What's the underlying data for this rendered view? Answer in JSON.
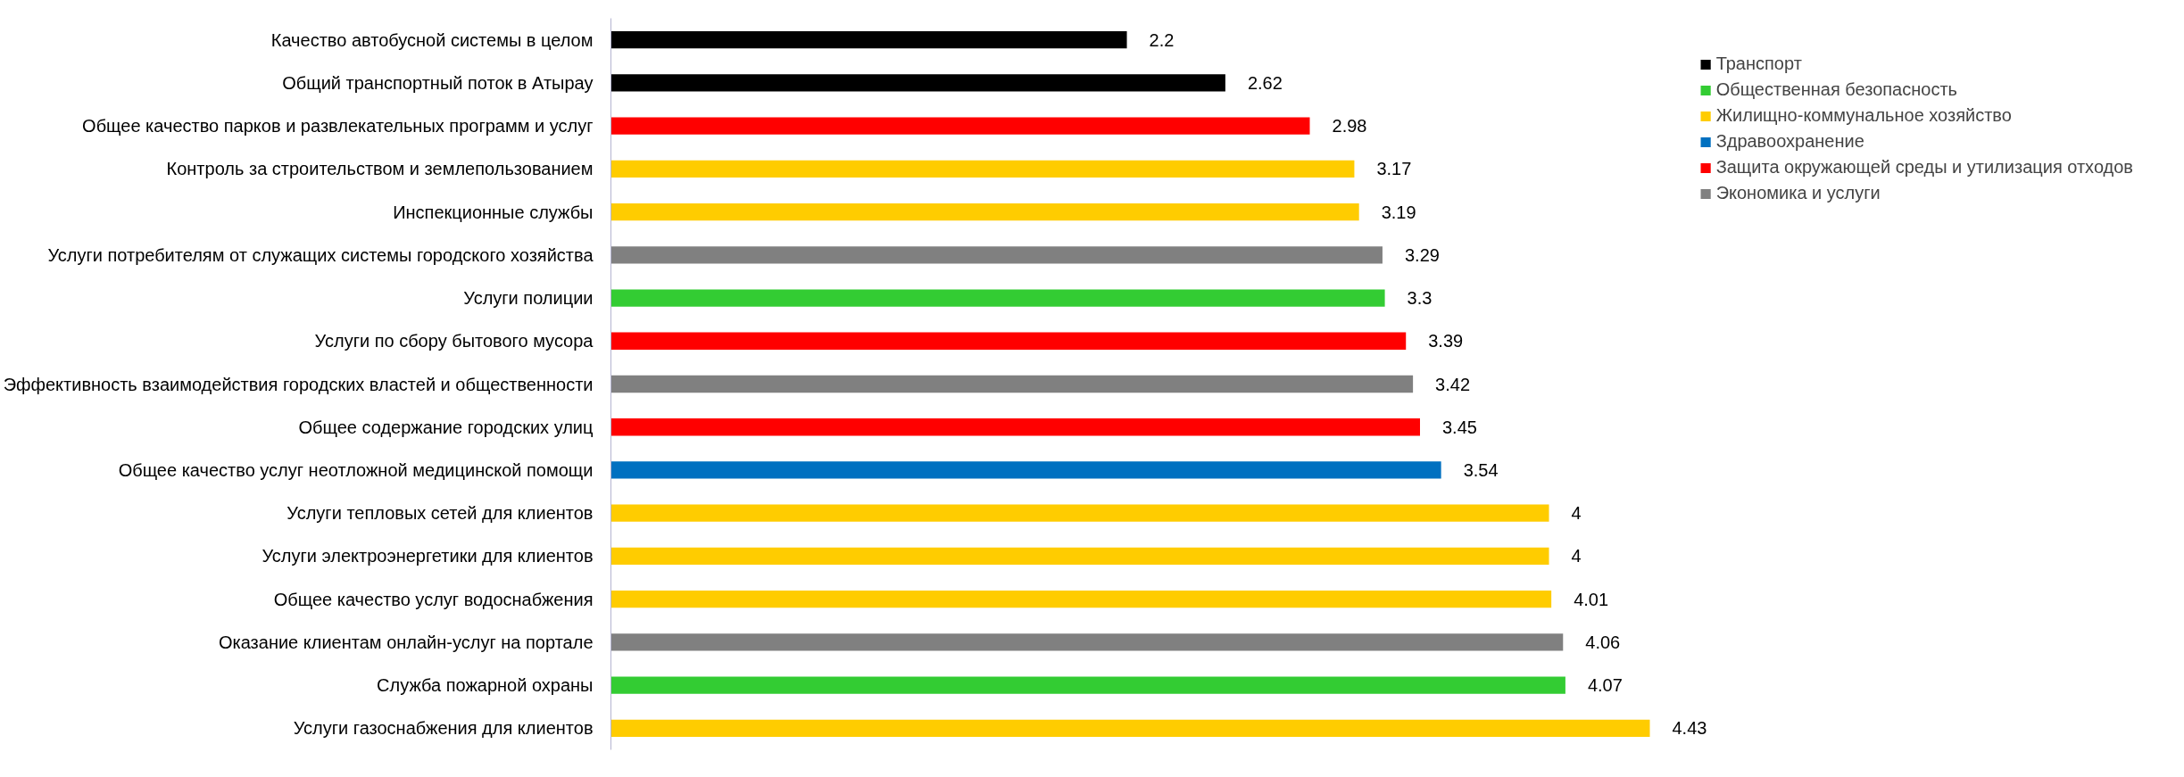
{
  "chart_data": {
    "type": "bar",
    "orientation": "horizontal",
    "data_labels": true,
    "legend": "top right",
    "grid": false,
    "tick_labels": "y",
    "categories": [
      "Качество автобусной системы в целом",
      "Общий транспортный поток в Атырау",
      "Общее качество парков и развлекательных программ и услуг",
      "Контроль за строительством и землепользованием",
      "Инспекционные службы",
      "Услуги потребителям от служащих системы городского хозяйства",
      "Услуги полиции",
      "Услуги по сбору бытового мусора",
      "Эффективность взаимодействия городских властей и общественности",
      "Общее содержание городских улиц",
      "Общее качество услуг неотложной медицинской помощи",
      "Услуги тепловых сетей для клиентов",
      "Услуги электроэнергетики для клиентов",
      "Общее качество услуг водоснабжения",
      "Оказание клиентам онлайн-услуг на портале",
      "Служба пожарной охраны",
      "Услуги газоснабжения для клиентов"
    ],
    "series": [
      {
        "name": "Транспорт",
        "color": "#000000",
        "values": [
          2.2,
          2.62,
          null,
          null,
          null,
          null,
          null,
          null,
          null,
          null,
          null,
          null,
          null,
          null,
          null,
          null,
          null
        ]
      },
      {
        "name": "Общественная безопасность",
        "color": "#33cc33",
        "values": [
          null,
          null,
          null,
          null,
          null,
          null,
          3.3,
          null,
          null,
          null,
          null,
          null,
          null,
          null,
          null,
          4.07,
          null
        ]
      },
      {
        "name": "Жилищно-коммунальное хозяйство",
        "color": "#ffcc00",
        "values": [
          null,
          null,
          null,
          3.17,
          3.19,
          null,
          null,
          null,
          null,
          null,
          null,
          4,
          4,
          4.01,
          null,
          null,
          4.43
        ]
      },
      {
        "name": "Здравоохранение",
        "color": "#0070c0",
        "values": [
          null,
          null,
          null,
          null,
          null,
          null,
          null,
          null,
          null,
          null,
          3.54,
          null,
          null,
          null,
          null,
          null,
          null
        ]
      },
      {
        "name": "Защита окружающей среды и утилизация отходов",
        "color": "#ff0000",
        "values": [
          null,
          null,
          2.98,
          null,
          null,
          null,
          null,
          3.39,
          null,
          3.45,
          null,
          null,
          null,
          null,
          null,
          null,
          null
        ]
      },
      {
        "name": "Экономика и услуги",
        "color": "#808080",
        "values": [
          null,
          null,
          null,
          null,
          null,
          3.29,
          null,
          null,
          3.42,
          null,
          null,
          null,
          null,
          null,
          4.06,
          null,
          null
        ]
      }
    ]
  }
}
